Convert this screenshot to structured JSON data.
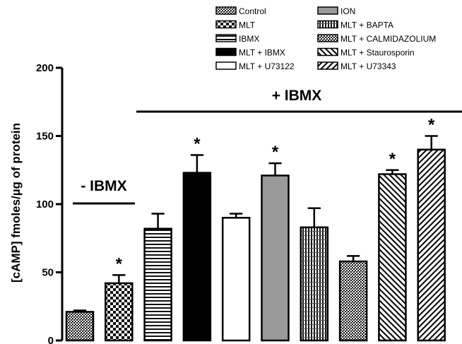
{
  "chart_data": {
    "type": "bar",
    "ylabel": "[cAMP] fmoles/µg of protein",
    "ylim": [
      0,
      200
    ],
    "yticks": [
      "0",
      "50",
      "100",
      "150",
      "200"
    ],
    "grid": false,
    "legend_position": "top",
    "group_labels": [
      {
        "text": "- IBMX",
        "from": 0,
        "to": 1
      },
      {
        "text": "+ IBMX",
        "from": 2,
        "to": 10
      }
    ],
    "significance_marker": "*",
    "series": [
      {
        "name": "Control",
        "value": 21,
        "error": 1,
        "significant": false,
        "pattern": "cross-dense"
      },
      {
        "name": "MLT",
        "value": 42,
        "error": 6,
        "significant": true,
        "pattern": "checker"
      },
      {
        "name": "IBMX",
        "value": 82,
        "error": 11,
        "significant": false,
        "pattern": "hlines"
      },
      {
        "name": "MLT + IBMX",
        "value": 123,
        "error": 13,
        "significant": true,
        "pattern": "solid-black"
      },
      {
        "name": "MLT + U73122",
        "value": 90,
        "error": 3,
        "significant": false,
        "pattern": "white"
      },
      {
        "name": "ION",
        "value": 121,
        "error": 9,
        "significant": true,
        "pattern": "solid-gray"
      },
      {
        "name": "MLT + BAPTA",
        "value": 83,
        "error": 14,
        "significant": false,
        "pattern": "vlines"
      },
      {
        "name": "MLT + CALMIDAZOLIUM",
        "value": 58,
        "error": 4,
        "significant": false,
        "pattern": "cross-dense"
      },
      {
        "name": "MLT + Staurosporin",
        "value": 122,
        "error": 3,
        "significant": true,
        "pattern": "diag-back"
      },
      {
        "name": "MLT + U73343",
        "value": 140,
        "error": 10,
        "significant": true,
        "pattern": "diag-fwd"
      }
    ],
    "legend_layout": [
      [
        0,
        5
      ],
      [
        1,
        6
      ],
      [
        2,
        7
      ],
      [
        3,
        8
      ],
      [
        4,
        9
      ]
    ]
  }
}
